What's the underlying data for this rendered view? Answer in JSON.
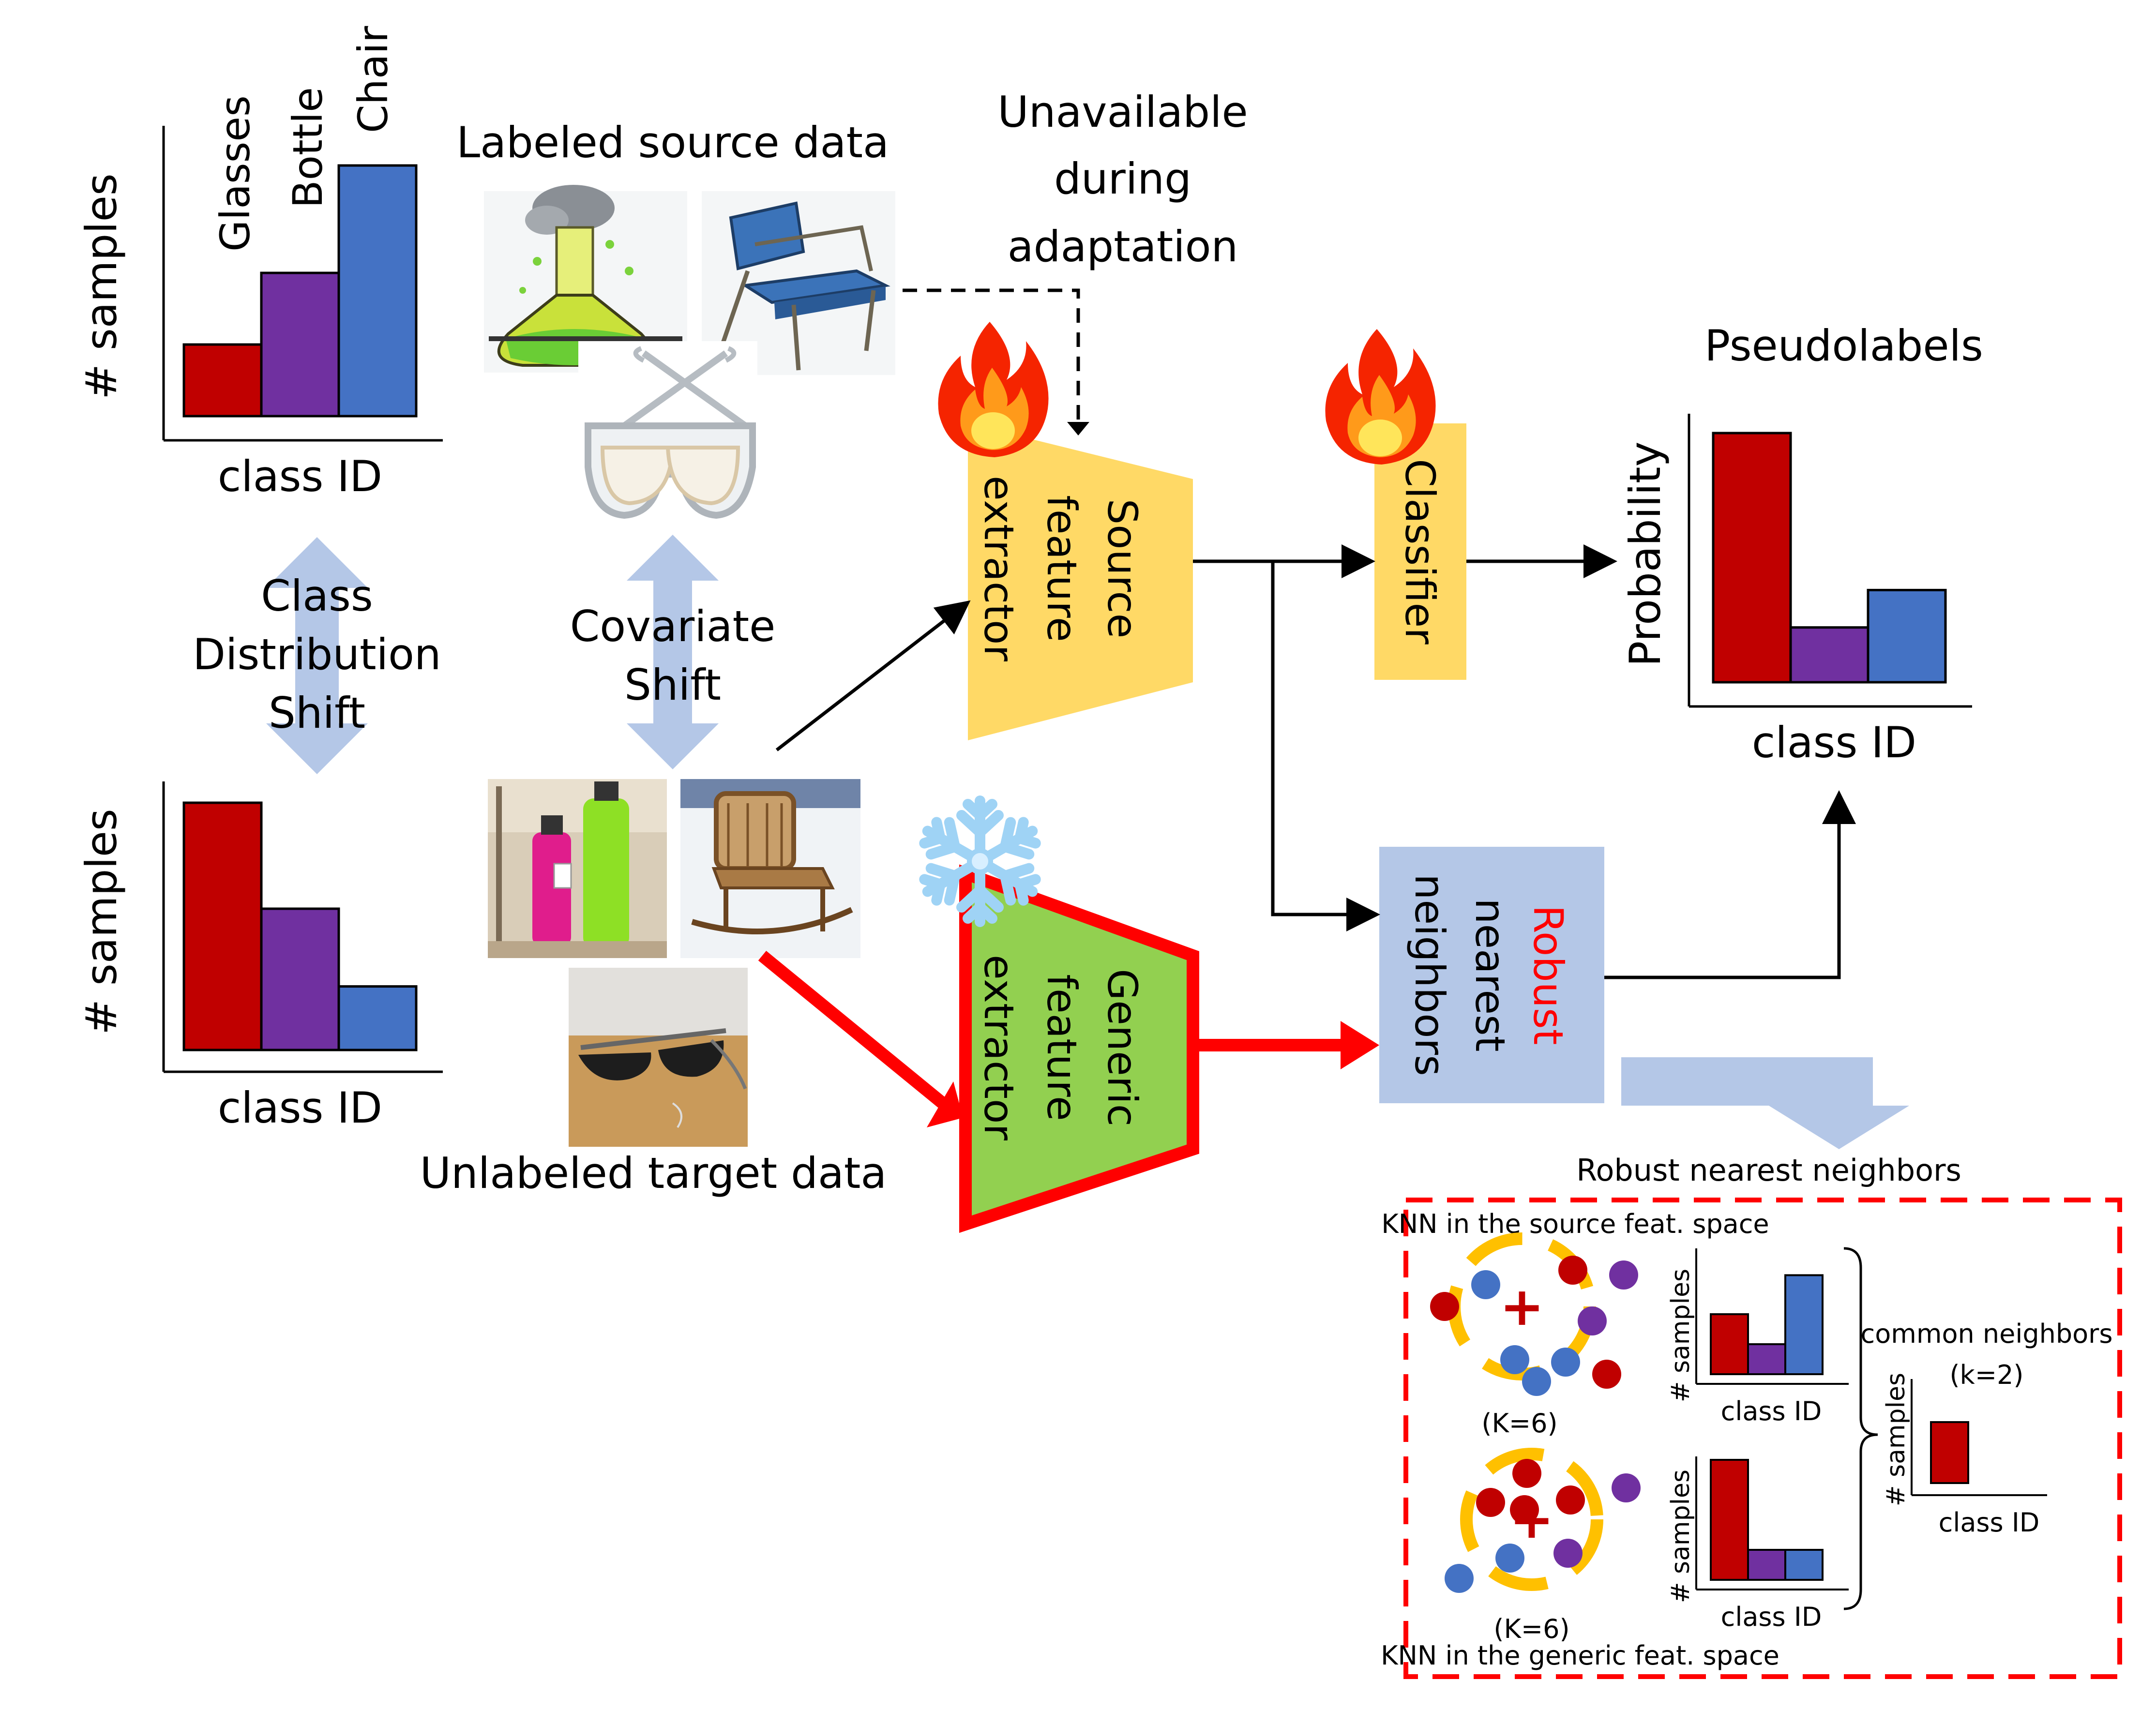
{
  "source_hist": {
    "bars": [
      {
        "label": "Glasses",
        "value": 1,
        "color": "#c00000"
      },
      {
        "label": "Bottle",
        "value": 2,
        "color": "#7030a0"
      },
      {
        "label": "Chair",
        "value": 3.5,
        "color": "#4472c4"
      }
    ],
    "ylabel": "# samples",
    "xlabel": "class ID"
  },
  "target_hist": {
    "values": [
      3.5,
      2,
      0.9
    ],
    "ylabel": "# samples",
    "xlabel": "class ID"
  },
  "shifts": {
    "class_line1": "Class",
    "class_line2": "Distribution",
    "class_line3": "Shift",
    "covariate_line1": "Covariate",
    "covariate_line2": "Shift"
  },
  "labels": {
    "labeled_source": "Labeled source data",
    "unlabeled_target": "Unlabeled target data",
    "unavailable_line1": "Unavailable",
    "unavailable_line2": "during",
    "unavailable_line3": "adaptation"
  },
  "blocks": {
    "source_fe_line1": "Source",
    "source_fe_line2": "feature",
    "source_fe_line3": "extractor",
    "generic_fe_line1": "Generic",
    "generic_fe_line2": "feature",
    "generic_fe_line3": "extractor",
    "classifier": "Classifier",
    "rnn_line1": "Robust",
    "rnn_line2": "nearest",
    "rnn_line3": "neighbors"
  },
  "pseudolabels": {
    "title": "Pseudolabels",
    "ylabel": "Probability",
    "xlabel": "class ID",
    "values": [
      1.0,
      0.22,
      0.37
    ]
  },
  "detail": {
    "title": "Robust nearest neighbors",
    "source_space": "KNN in the source feat. space",
    "generic_space": "KNN in the generic feat. space",
    "k_label_1": "(K=6)",
    "k_label_2": "(K=6)",
    "common_line1": "common neighbors",
    "common_line2": "(k=2)",
    "hist_ylabel": "# samples",
    "hist_xlabel": "class ID",
    "source_knn_values": [
      2,
      1,
      3.3
    ],
    "generic_knn_values": [
      4,
      1,
      1
    ],
    "common_values": [
      2
    ]
  },
  "colors": {
    "red": "#c00000",
    "purple": "#7030a0",
    "blue": "#4472c4",
    "light_blue_arrow": "#b4c7e7",
    "source_block": "#ffd966",
    "generic_block": "#92d050",
    "rnn_block": "#b4c7e7",
    "highlight_red": "#ff0000",
    "ring_orange": "#ffc000"
  },
  "icons": [
    "flask-image",
    "armchair-image",
    "goggles-image",
    "bottles-image",
    "rocking-chair-image",
    "sunglasses-image",
    "fire-icon",
    "snowflake-icon"
  ]
}
